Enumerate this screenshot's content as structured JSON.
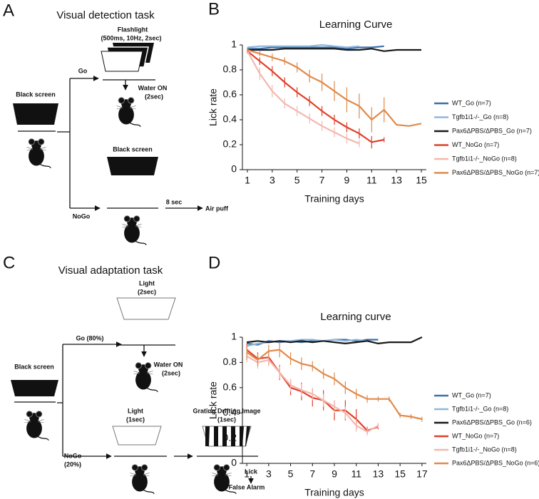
{
  "panel_a": {
    "label": "A",
    "title": "Visual detection task",
    "go_stimulus": "Flashlight",
    "go_stimulus_detail": "(500ms, 10Hz, 2sec)",
    "go": "Go",
    "reward": "Water ON",
    "reward_duration": "(2sec)",
    "start_screen": "Black screen",
    "nogo": "NoGo",
    "nogo_screen": "Black screen",
    "delay": "8 sec",
    "punishment": "Air puff"
  },
  "panel_c": {
    "label": "C",
    "title": "Visual adaptation task",
    "start_screen": "Black screen",
    "go": "Go (80%)",
    "go_stimulus": "Light",
    "go_stimulus_duration": "(2sec)",
    "reward": "Water ON",
    "reward_duration": "(2sec)",
    "nogo": "NoGo",
    "nogo_share": "(20%)",
    "nogo_stimulus": "Light",
    "nogo_stimulus_duration": "(1sec)",
    "grating": "Grating Drifting Image",
    "grating_duration": "(1sec)",
    "lick": "Lick",
    "false_alarm": "False Alarm"
  },
  "chart_data": [
    {
      "type": "line",
      "panel_label": "B",
      "title": "Learning Curve",
      "xlabel": "Training days",
      "ylabel": "Lick rate",
      "x": [
        1,
        2,
        3,
        4,
        5,
        6,
        7,
        8,
        9,
        10,
        11,
        12,
        13,
        14,
        15
      ],
      "xlim": [
        0.6,
        15.4
      ],
      "xticks": [
        1,
        3,
        5,
        7,
        9,
        11,
        13,
        15
      ],
      "ylim": [
        0,
        1
      ],
      "yticks": [
        0,
        0.2,
        0.4,
        0.6,
        0.8,
        1
      ],
      "series": [
        {
          "name": "WT_Go (n=7)",
          "color": "#3d6fa8",
          "values": [
            0.97,
            0.97,
            0.98,
            0.98,
            0.98,
            0.98,
            0.98,
            0.98,
            0.97,
            0.98,
            0.98,
            0.99,
            null,
            null,
            null
          ]
        },
        {
          "name": "Tgfb1i1-/-_Go (n=8)",
          "color": "#8fb7de",
          "values": [
            0.98,
            0.99,
            0.99,
            0.99,
            0.99,
            0.99,
            1.0,
            0.99,
            0.98,
            0.99,
            null,
            null,
            null,
            null,
            null
          ]
        },
        {
          "name": "Pax6ΔPBS/ΔPBS_Go (n=7)",
          "color": "#1a1a1a",
          "values": [
            0.96,
            0.96,
            0.96,
            0.97,
            0.97,
            0.97,
            0.97,
            0.97,
            0.96,
            0.96,
            0.97,
            0.95,
            0.96,
            0.96,
            0.96
          ]
        },
        {
          "name": "WT_NoGo (n=7)",
          "color": "#e0402a",
          "values": [
            0.95,
            0.87,
            0.79,
            0.7,
            0.62,
            0.55,
            0.47,
            0.4,
            0.34,
            0.29,
            0.22,
            0.24,
            null,
            null,
            null
          ],
          "errors": [
            0.02,
            0.03,
            0.04,
            0.04,
            0.04,
            0.04,
            0.04,
            0.04,
            0.04,
            0.04,
            0.05,
            0.02,
            null,
            null,
            null
          ]
        },
        {
          "name": "Tgfb1i1-/-_NoGo (n=8)",
          "color": "#f2b8b0",
          "values": [
            0.95,
            0.77,
            0.63,
            0.53,
            0.47,
            0.41,
            0.35,
            0.3,
            0.25,
            0.21,
            null,
            null,
            null,
            null,
            null
          ],
          "errors": [
            0.02,
            0.05,
            0.05,
            0.04,
            0.04,
            0.04,
            0.04,
            0.04,
            0.04,
            0.03,
            null,
            null,
            null,
            null,
            null
          ]
        },
        {
          "name": "Pax6ΔPBS/ΔPBS_NoGo (n=7)",
          "color": "#e08a4a",
          "values": [
            0.96,
            0.93,
            0.9,
            0.87,
            0.82,
            0.75,
            0.7,
            0.63,
            0.56,
            0.51,
            0.4,
            0.48,
            0.36,
            0.35,
            0.37
          ],
          "errors": [
            0.02,
            0.02,
            0.03,
            0.03,
            0.04,
            0.05,
            0.07,
            0.08,
            0.1,
            0.1,
            0.1,
            0.1,
            null,
            null,
            null
          ]
        }
      ]
    },
    {
      "type": "line",
      "panel_label": "D",
      "title": "Learning curve",
      "xlabel": "Training days",
      "ylabel": "Lick rate",
      "x": [
        1,
        2,
        3,
        4,
        5,
        6,
        7,
        8,
        9,
        10,
        11,
        12,
        13,
        14,
        15,
        16,
        17
      ],
      "xlim": [
        0.6,
        17.4
      ],
      "xticks": [
        1,
        3,
        5,
        7,
        9,
        11,
        13,
        15,
        17
      ],
      "ylim": [
        0,
        1
      ],
      "yticks": [
        0,
        0.2,
        0.4,
        0.6,
        0.8,
        1
      ],
      "series": [
        {
          "name": "WT_Go (n=7)",
          "color": "#3d6fa8",
          "values": [
            0.95,
            0.94,
            0.97,
            0.96,
            0.97,
            0.96,
            0.97,
            0.97,
            0.98,
            0.98,
            0.97,
            0.98,
            0.98,
            null,
            null,
            null,
            null
          ]
        },
        {
          "name": "Tgfb1i1-/-_Go (n=8)",
          "color": "#8fb7de",
          "values": [
            0.93,
            0.95,
            0.96,
            0.97,
            0.97,
            0.98,
            0.98,
            0.97,
            0.98,
            0.97,
            0.98,
            0.97,
            null,
            null,
            null,
            null,
            null
          ]
        },
        {
          "name": "Pax6ΔPBS/ΔPBS_Go (n=6)",
          "color": "#1a1a1a",
          "values": [
            0.96,
            0.97,
            0.96,
            0.97,
            0.96,
            0.97,
            0.96,
            0.97,
            0.96,
            0.95,
            0.96,
            0.97,
            0.95,
            0.96,
            0.96,
            0.96,
            1.0
          ]
        },
        {
          "name": "WT_NoGo (n=7)",
          "color": "#e0402a",
          "values": [
            0.9,
            0.83,
            0.84,
            0.72,
            0.6,
            0.57,
            0.52,
            0.5,
            0.42,
            0.42,
            0.35,
            0.26,
            0.29,
            null,
            null,
            null,
            null
          ],
          "errors": [
            0.05,
            0.05,
            0.06,
            0.06,
            0.06,
            0.07,
            0.07,
            0.08,
            0.08,
            0.08,
            0.08,
            0.03,
            0.02,
            null,
            null,
            null,
            null
          ]
        },
        {
          "name": "Tgfb1i1-/-_NoGo (n=8)",
          "color": "#f2b8b0",
          "values": [
            0.85,
            0.8,
            0.82,
            0.72,
            0.62,
            0.58,
            0.55,
            0.5,
            0.45,
            0.4,
            0.3,
            0.25,
            0.3,
            null,
            null,
            null,
            null
          ],
          "errors": [
            0.05,
            0.05,
            0.05,
            0.05,
            0.05,
            0.05,
            0.05,
            0.05,
            0.05,
            0.05,
            0.05,
            0.03,
            0.02,
            null,
            null,
            null,
            null
          ]
        },
        {
          "name": "Pax6ΔPBS/ΔPBS_NoGo (n=6)",
          "color": "#e08a4a",
          "values": [
            0.88,
            0.82,
            0.89,
            0.9,
            0.83,
            0.79,
            0.77,
            0.71,
            0.67,
            0.6,
            0.55,
            0.51,
            0.51,
            0.51,
            0.38,
            0.37,
            0.35
          ],
          "errors": [
            0.06,
            0.05,
            0.05,
            0.06,
            0.05,
            0.05,
            0.04,
            0.04,
            0.05,
            0.05,
            0.04,
            0.03,
            0.02,
            0.02,
            0.02,
            0.02,
            0.02
          ]
        }
      ]
    }
  ]
}
